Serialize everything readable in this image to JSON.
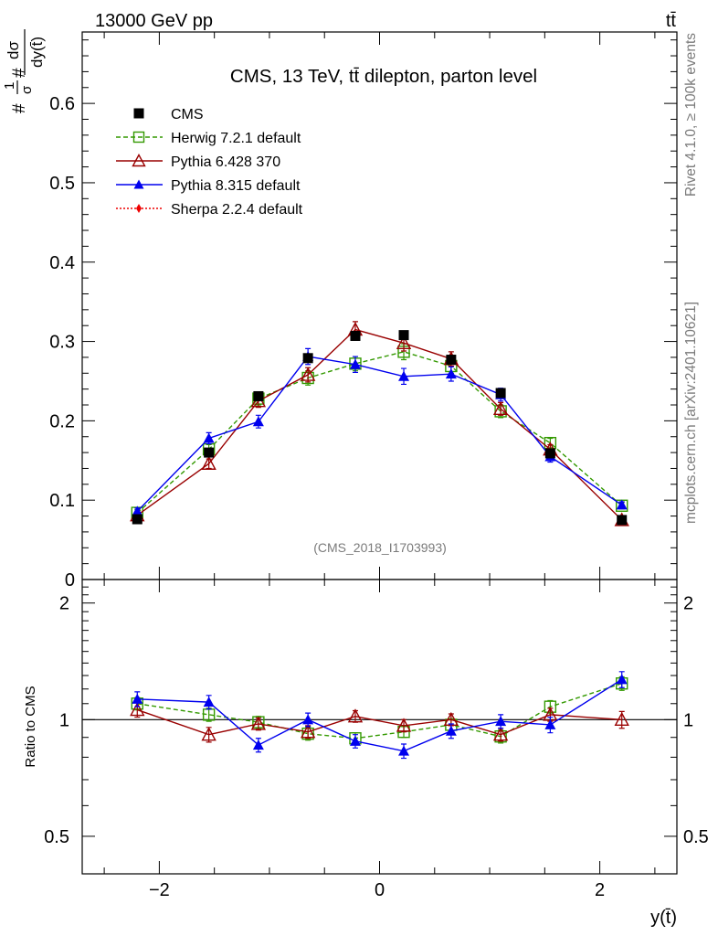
{
  "header": {
    "energy_label": "13000 GeV pp",
    "process_label": "tt̄"
  },
  "side_labels": {
    "rivet": "Rivet 4.1.0, ≥ 100k events",
    "source": "mcplots.cern.ch [arXiv:2401.10621]"
  },
  "chart_data": [
    {
      "type": "line",
      "panel": "main",
      "title": "CMS, 13 TeV, tt̄ dilepton, parton level",
      "analysis_tag": "(CMS_2018_I1703993)",
      "ylabel_parts": [
        "#",
        "1",
        "σ",
        "#",
        "dσ",
        "dy(t̄)"
      ],
      "xlabel": "",
      "xlim": [
        -2.7,
        2.7
      ],
      "ylim": [
        0,
        0.69
      ],
      "yticks": [
        0,
        0.1,
        0.2,
        0.3,
        0.4,
        0.5,
        0.6
      ],
      "ytick_labels": [
        "0",
        "0.1",
        "0.2",
        "0.3",
        "0.4",
        "0.5",
        "0.6"
      ],
      "x": [
        -2.2,
        -1.55,
        -1.1,
        -0.65,
        -0.22,
        0.22,
        0.65,
        1.1,
        1.55,
        2.2
      ],
      "legend": [
        {
          "name": "CMS",
          "style": "data"
        },
        {
          "name": "Herwig 7.2.1 default",
          "style": "herwig"
        },
        {
          "name": "Pythia 6.428 370",
          "style": "py6"
        },
        {
          "name": "Pythia 8.315 default",
          "style": "py8"
        },
        {
          "name": "Sherpa 2.2.4 default",
          "style": "sherpa"
        }
      ],
      "series": [
        {
          "name": "CMS",
          "color": "#000000",
          "values": [
            0.076,
            0.16,
            0.231,
            0.279,
            0.307,
            0.308,
            0.277,
            0.235,
            0.159,
            0.075
          ],
          "errors": [
            0.003,
            0.004,
            0.004,
            0.005,
            0.005,
            0.005,
            0.005,
            0.004,
            0.004,
            0.003
          ]
        },
        {
          "name": "Herwig 7.2.1 default",
          "color": "#339900",
          "values": [
            0.084,
            0.164,
            0.228,
            0.254,
            0.272,
            0.287,
            0.269,
            0.212,
            0.172,
            0.093
          ],
          "errors": [
            0.004,
            0.006,
            0.008,
            0.009,
            0.009,
            0.01,
            0.009,
            0.008,
            0.006,
            0.004
          ]
        },
        {
          "name": "Pythia 6.428 370",
          "color": "#990000",
          "values": [
            0.081,
            0.146,
            0.225,
            0.258,
            0.315,
            0.298,
            0.278,
            0.215,
            0.164,
            0.075
          ],
          "errors": [
            0.004,
            0.006,
            0.008,
            0.009,
            0.01,
            0.01,
            0.009,
            0.008,
            0.006,
            0.004
          ]
        },
        {
          "name": "Pythia 8.315 default",
          "color": "#0000ee",
          "values": [
            0.086,
            0.178,
            0.199,
            0.281,
            0.271,
            0.256,
            0.259,
            0.233,
            0.155,
            0.094
          ],
          "errors": [
            0.004,
            0.007,
            0.008,
            0.01,
            0.01,
            0.01,
            0.009,
            0.008,
            0.007,
            0.004
          ]
        }
      ]
    },
    {
      "type": "line",
      "panel": "ratio",
      "ylabel": "Ratio to CMS",
      "xlabel": "y(t̄)",
      "xlim": [
        -2.7,
        2.7
      ],
      "ylim": [
        0.4,
        2.3
      ],
      "yscale": "log",
      "yticks": [
        0.5,
        1,
        2
      ],
      "ytick_labels": [
        "0.5",
        "1",
        "2"
      ],
      "xticks": [
        -2,
        0,
        2
      ],
      "xtick_labels": [
        "−2",
        "0",
        "2"
      ],
      "x": [
        -2.2,
        -1.55,
        -1.1,
        -0.65,
        -0.22,
        0.22,
        0.65,
        1.1,
        1.55,
        2.2
      ],
      "series": [
        {
          "name": "Herwig 7.2.1 default",
          "color": "#339900",
          "values": [
            1.1,
            1.03,
            0.985,
            0.92,
            0.895,
            0.93,
            0.97,
            0.905,
            1.08,
            1.24
          ],
          "errors": [
            0.04,
            0.04,
            0.035,
            0.035,
            0.03,
            0.03,
            0.035,
            0.035,
            0.04,
            0.05
          ]
        },
        {
          "name": "Pythia 6.428 370",
          "color": "#990000",
          "values": [
            1.06,
            0.915,
            0.975,
            0.93,
            1.02,
            0.965,
            1.0,
            0.915,
            1.03,
            1.0
          ],
          "errors": [
            0.045,
            0.04,
            0.035,
            0.035,
            0.035,
            0.035,
            0.035,
            0.035,
            0.04,
            0.05
          ]
        },
        {
          "name": "Pythia 8.315 default",
          "color": "#0000ee",
          "values": [
            1.13,
            1.11,
            0.86,
            1.0,
            0.88,
            0.83,
            0.935,
            0.99,
            0.97,
            1.27
          ],
          "errors": [
            0.05,
            0.045,
            0.035,
            0.04,
            0.035,
            0.035,
            0.04,
            0.04,
            0.045,
            0.06
          ]
        }
      ]
    }
  ]
}
